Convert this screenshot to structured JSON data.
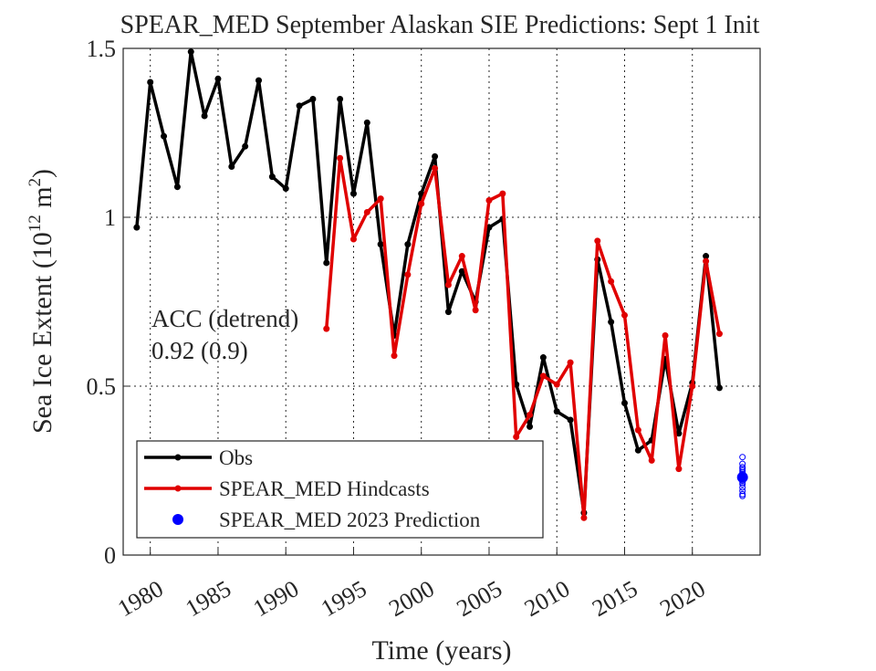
{
  "chart_data": {
    "type": "line",
    "title": "SPEAR_MED September Alaskan SIE Predictions: Sept 1 Init",
    "xlabel": "Time (years)",
    "ylabel_parts": [
      "Sea Ice Extent (10",
      "12",
      " m",
      "2",
      ")"
    ],
    "annotations": [
      "ACC (detrend)",
      "0.92 (0.9)"
    ],
    "xlim": [
      1978,
      2025
    ],
    "ylim": [
      0,
      1.5
    ],
    "xticks": [
      1980,
      1985,
      1990,
      1995,
      2000,
      2005,
      2010,
      2015,
      2020
    ],
    "yticks": [
      0,
      0.5,
      1,
      1.5
    ],
    "grid": true,
    "legend": "lower-left",
    "series": [
      {
        "name": "Obs",
        "color": "#000000",
        "style": "line",
        "x": [
          1979,
          1980,
          1981,
          1982,
          1983,
          1984,
          1985,
          1986,
          1987,
          1988,
          1989,
          1990,
          1991,
          1992,
          1993,
          1994,
          1995,
          1996,
          1997,
          1998,
          1999,
          2000,
          2001,
          2002,
          2003,
          2004,
          2005,
          2006,
          2007,
          2008,
          2009,
          2010,
          2011,
          2012,
          2013,
          2014,
          2015,
          2016,
          2017,
          2018,
          2019,
          2020,
          2021,
          2022
        ],
        "values": [
          0.97,
          1.4,
          1.24,
          1.09,
          1.49,
          1.3,
          1.41,
          1.15,
          1.21,
          1.405,
          1.12,
          1.085,
          1.33,
          1.35,
          0.865,
          1.35,
          1.07,
          1.28,
          0.92,
          0.65,
          0.92,
          1.07,
          1.18,
          0.72,
          0.84,
          0.75,
          0.97,
          0.995,
          0.505,
          0.38,
          0.585,
          0.425,
          0.4,
          0.125,
          0.875,
          0.69,
          0.45,
          0.31,
          0.34,
          0.58,
          0.36,
          0.51,
          0.885,
          0.495
        ]
      },
      {
        "name": "SPEAR_MED Hindcasts",
        "color": "#e00000",
        "style": "line",
        "x": [
          1993,
          1994,
          1995,
          1996,
          1997,
          1998,
          1999,
          2000,
          2001,
          2002,
          2003,
          2004,
          2005,
          2006,
          2007,
          2008,
          2009,
          2010,
          2011,
          2012,
          2013,
          2014,
          2015,
          2016,
          2017,
          2018,
          2019,
          2020,
          2021,
          2022
        ],
        "values": [
          0.67,
          1.175,
          0.935,
          1.015,
          1.055,
          0.59,
          0.83,
          1.04,
          1.145,
          0.8,
          0.885,
          0.725,
          1.05,
          1.07,
          0.35,
          0.415,
          0.53,
          0.505,
          0.57,
          0.11,
          0.93,
          0.81,
          0.71,
          0.37,
          0.28,
          0.65,
          0.255,
          0.5,
          0.87,
          0.655
        ]
      },
      {
        "name": "SPEAR_MED 2023 Prediction",
        "color": "#0000ff",
        "style": "scatter",
        "x": [
          2023.7
        ],
        "values": [
          0.23
        ],
        "members": [
          0.29,
          0.27,
          0.26,
          0.255,
          0.25,
          0.245,
          0.24,
          0.235,
          0.23,
          0.225,
          0.22,
          0.215,
          0.21,
          0.2,
          0.19,
          0.18,
          0.175
        ]
      }
    ]
  }
}
